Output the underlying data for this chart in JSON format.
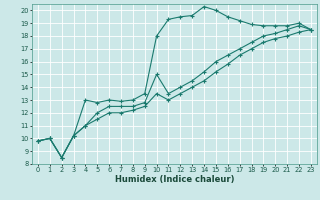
{
  "xlabel": "Humidex (Indice chaleur)",
  "bg_color": "#cce8e8",
  "grid_color": "#ffffff",
  "line_color": "#1a7a6e",
  "xlim": [
    -0.5,
    23.5
  ],
  "ylim": [
    8,
    20.5
  ],
  "xticks": [
    0,
    1,
    2,
    3,
    4,
    5,
    6,
    7,
    8,
    9,
    10,
    11,
    12,
    13,
    14,
    15,
    16,
    17,
    18,
    19,
    20,
    21,
    22,
    23
  ],
  "yticks": [
    8,
    9,
    10,
    11,
    12,
    13,
    14,
    15,
    16,
    17,
    18,
    19,
    20
  ],
  "line1_x": [
    0,
    1,
    2,
    3,
    4,
    5,
    6,
    7,
    8,
    9,
    10,
    11,
    12,
    13,
    14,
    15,
    16,
    17,
    18,
    19,
    20,
    21,
    22,
    23
  ],
  "line1_y": [
    9.8,
    10.0,
    8.5,
    10.2,
    13.0,
    12.8,
    13.0,
    12.9,
    13.0,
    13.5,
    18.0,
    19.3,
    19.5,
    19.6,
    20.3,
    20.0,
    19.5,
    19.2,
    18.9,
    18.8,
    18.8,
    18.8,
    19.0,
    18.5
  ],
  "line2_x": [
    0,
    1,
    2,
    3,
    4,
    5,
    6,
    7,
    8,
    9,
    10,
    11,
    12,
    13,
    14,
    15,
    16,
    17,
    18,
    19,
    20,
    21,
    22,
    23
  ],
  "line2_y": [
    9.8,
    10.0,
    8.5,
    10.2,
    11.0,
    12.0,
    12.5,
    12.5,
    12.5,
    12.8,
    15.0,
    13.5,
    14.0,
    14.5,
    15.2,
    16.0,
    16.5,
    17.0,
    17.5,
    18.0,
    18.2,
    18.5,
    18.8,
    18.5
  ],
  "line3_x": [
    0,
    1,
    2,
    3,
    4,
    5,
    6,
    7,
    8,
    9,
    10,
    11,
    12,
    13,
    14,
    15,
    16,
    17,
    18,
    19,
    20,
    21,
    22,
    23
  ],
  "line3_y": [
    9.8,
    10.0,
    8.5,
    10.2,
    11.0,
    11.5,
    12.0,
    12.0,
    12.2,
    12.5,
    13.5,
    13.0,
    13.5,
    14.0,
    14.5,
    15.2,
    15.8,
    16.5,
    17.0,
    17.5,
    17.8,
    18.0,
    18.3,
    18.5
  ],
  "tick_color": "#1a5a4a",
  "xlabel_color": "#1a4a3a",
  "xlabel_fontsize": 6.0,
  "tick_fontsize": 4.8
}
